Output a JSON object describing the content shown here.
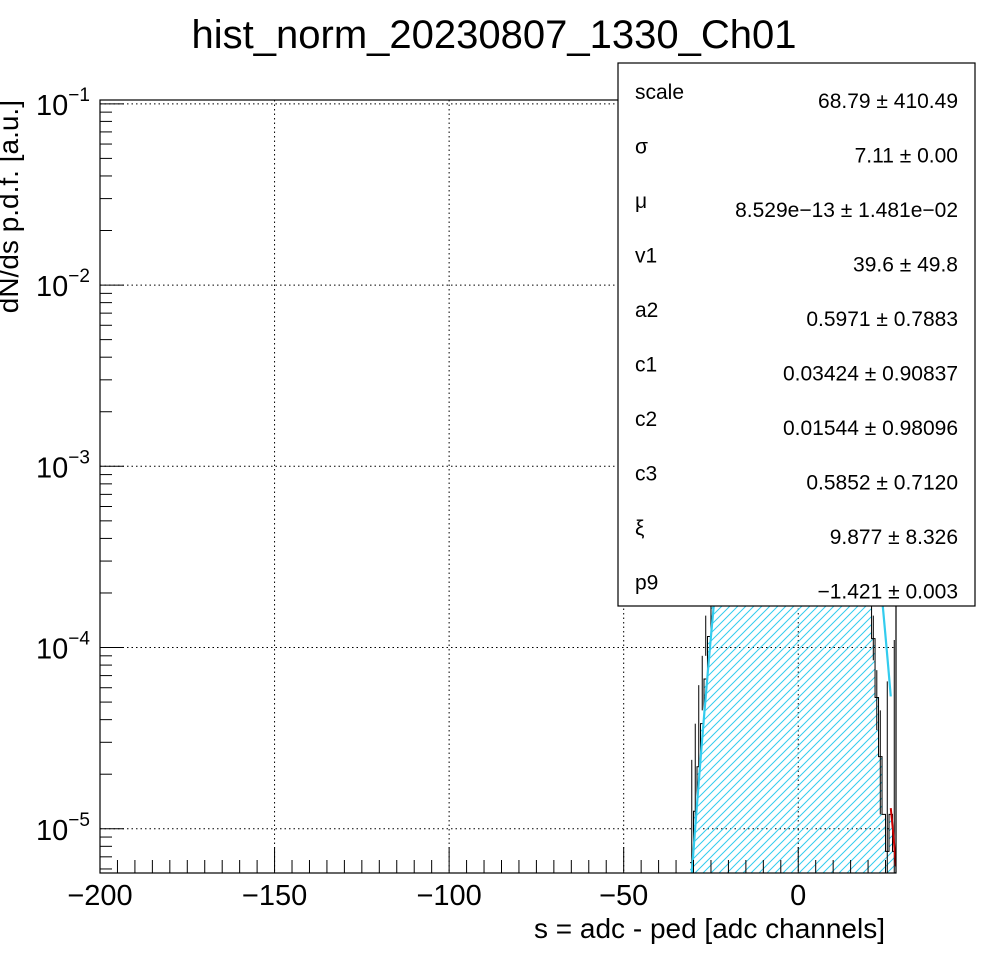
{
  "chart_data": {
    "type": "histogram",
    "title": "hist_norm_20230807_1330_Ch01",
    "xlabel": "s = adc - ped [adc channels]",
    "ylabel": "dN/ds p.d.f. [a.u.]",
    "xlim": [
      -200,
      28
    ],
    "ylim": [
      5.7e-06,
      0.105
    ],
    "yscale": "log",
    "grid": true,
    "x_ticks": [
      -200,
      -150,
      -100,
      -50,
      0
    ],
    "x_tick_labels": [
      "−200",
      "−150",
      "−100",
      "−50",
      "0"
    ],
    "y_ticks": [
      {
        "value": 0.1,
        "base": "10",
        "exp": "−1"
      },
      {
        "value": 0.01,
        "base": "10",
        "exp": "−2"
      },
      {
        "value": 0.001,
        "base": "10",
        "exp": "−3"
      },
      {
        "value": 0.0001,
        "base": "10",
        "exp": "−4"
      },
      {
        "value": 1e-05,
        "base": "10",
        "exp": "−5"
      }
    ],
    "histogram": {
      "bin_width": 1,
      "bins": [
        {
          "x": -31,
          "y": 6.5e-06
        },
        {
          "x": -30,
          "y": 1.25e-05
        },
        {
          "x": -29,
          "y": 2.2e-05
        },
        {
          "x": -28,
          "y": 3.8e-05
        },
        {
          "x": -27,
          "y": 6.7e-05
        },
        {
          "x": -26,
          "y": 0.000115
        },
        {
          "x": -25,
          "y": 0.00019
        },
        {
          "x": -24,
          "y": 0.0003
        },
        {
          "x": -23,
          "y": 0.00047
        },
        {
          "x": -22,
          "y": 0.0007
        },
        {
          "x": -21,
          "y": 0.00104
        },
        {
          "x": -20,
          "y": 0.0015
        },
        {
          "x": -19,
          "y": 0.0021
        },
        {
          "x": -18,
          "y": 0.0029
        },
        {
          "x": -17,
          "y": 0.0039
        },
        {
          "x": -16,
          "y": 0.0052
        },
        {
          "x": -15,
          "y": 0.0068
        },
        {
          "x": -14,
          "y": 0.0088
        },
        {
          "x": -13,
          "y": 0.0112
        },
        {
          "x": -12,
          "y": 0.014
        },
        {
          "x": -11,
          "y": 0.0173
        },
        {
          "x": -10,
          "y": 0.021
        },
        {
          "x": -9,
          "y": 0.025
        },
        {
          "x": -8,
          "y": 0.0294
        },
        {
          "x": -7,
          "y": 0.034
        },
        {
          "x": -6,
          "y": 0.0387
        },
        {
          "x": -5,
          "y": 0.0433
        },
        {
          "x": -4,
          "y": 0.0476
        },
        {
          "x": -3,
          "y": 0.0512
        },
        {
          "x": -2,
          "y": 0.0539
        },
        {
          "x": -1,
          "y": 0.0555
        },
        {
          "x": 0,
          "y": 0.0558
        },
        {
          "x": 1,
          "y": 0.0548
        },
        {
          "x": 2,
          "y": 0.0526
        },
        {
          "x": 3,
          "y": 0.0494
        },
        {
          "x": 4,
          "y": 0.0453
        },
        {
          "x": 5,
          "y": 0.0406
        },
        {
          "x": 6,
          "y": 0.0356
        },
        {
          "x": 7,
          "y": 0.0305
        },
        {
          "x": 8,
          "y": 0.0255
        },
        {
          "x": 9,
          "y": 0.0208
        },
        {
          "x": 10,
          "y": 0.0165
        },
        {
          "x": 11,
          "y": 0.0128
        },
        {
          "x": 12,
          "y": 0.0096
        },
        {
          "x": 13,
          "y": 0.007
        },
        {
          "x": 14,
          "y": 0.0049
        },
        {
          "x": 15,
          "y": 0.0033
        },
        {
          "x": 16,
          "y": 0.0021
        },
        {
          "x": 17,
          "y": 0.0013
        },
        {
          "x": 18,
          "y": 0.00076
        },
        {
          "x": 19,
          "y": 0.00042
        },
        {
          "x": 20,
          "y": 0.00022
        },
        {
          "x": 21,
          "y": 0.000112
        },
        {
          "x": 22,
          "y": 5.3e-05
        },
        {
          "x": 23,
          "y": 2.5e-05
        },
        {
          "x": 24,
          "y": 1.2e-05
        },
        {
          "x": 25,
          "y": 7.5e-06
        },
        {
          "x": 26,
          "y": 1.2e-05
        },
        {
          "x": 27,
          "y": 7.5e-06
        }
      ]
    },
    "error_bars": [
      {
        "x": -30.5,
        "y": 1.25e-05,
        "low": 5.7e-06,
        "high": 2.4e-05
      },
      {
        "x": -29.5,
        "y": 2.2e-05,
        "low": 1.05e-05,
        "high": 3.8e-05
      },
      {
        "x": -28.5,
        "y": 3.8e-05,
        "low": 2.2e-05,
        "high": 6.2e-05
      },
      {
        "x": -27.5,
        "y": 6.7e-05,
        "low": 4.5e-05,
        "high": 9e-05
      },
      {
        "x": -26.5,
        "y": 0.000115,
        "low": 9e-05,
        "high": 0.00015
      },
      {
        "x": 20.5,
        "y": 0.00022,
        "low": 0.00018,
        "high": 0.00027
      },
      {
        "x": 21.5,
        "y": 0.000112,
        "low": 8.5e-05,
        "high": 0.00015
      },
      {
        "x": 22.5,
        "y": 5.3e-05,
        "low": 3.5e-05,
        "high": 7.5e-05
      },
      {
        "x": 23.5,
        "y": 2.5e-05,
        "low": 1.2e-05,
        "high": 4.5e-05
      },
      {
        "x": 25.5,
        "y": 1.2e-05,
        "low": 5.7e-06,
        "high": 6.5e-05
      },
      {
        "x": 27.5,
        "y": 7.5e-06,
        "low": 5.7e-06,
        "high": 0.00011
      }
    ],
    "fit_curve": {
      "function": "gaussian",
      "mu": 0,
      "sigma": 7.11,
      "peak": 0.0558,
      "range": [
        -31,
        26.5
      ],
      "color": "#33ccee"
    },
    "extra_curve": {
      "color": "#cc0000",
      "points": [
        {
          "x": 26.5,
          "y": 1.3e-05
        },
        {
          "x": 27.2,
          "y": 9.5e-06
        },
        {
          "x": 28,
          "y": 6.2e-06
        }
      ]
    },
    "fill": {
      "color": "#33ccee",
      "pattern": "diagonal-hatch"
    },
    "stats_box": {
      "placement": "top-right",
      "rows": [
        {
          "name": "scale",
          "value": "68.79",
          "error": "410.49"
        },
        {
          "name": "σ",
          "value": "7.11",
          "error": "0.00"
        },
        {
          "name": "μ",
          "value": "8.529e−13",
          "error": "1.481e−02"
        },
        {
          "name": "v1",
          "value": "39.6",
          "error": "49.8"
        },
        {
          "name": "a2",
          "value": "0.5971",
          "error": "0.7883"
        },
        {
          "name": "c1",
          "value": "0.03424",
          "error": "0.90837"
        },
        {
          "name": "c2",
          "value": "0.01544",
          "error": "0.98096"
        },
        {
          "name": "c3",
          "value": "0.5852",
          "error": "0.7120"
        },
        {
          "name": "ξ",
          "value": "9.877",
          "error": "8.326"
        },
        {
          "name": "p9",
          "value": "−1.421",
          "error": "0.003"
        }
      ],
      "pm_symbol": "±"
    }
  }
}
